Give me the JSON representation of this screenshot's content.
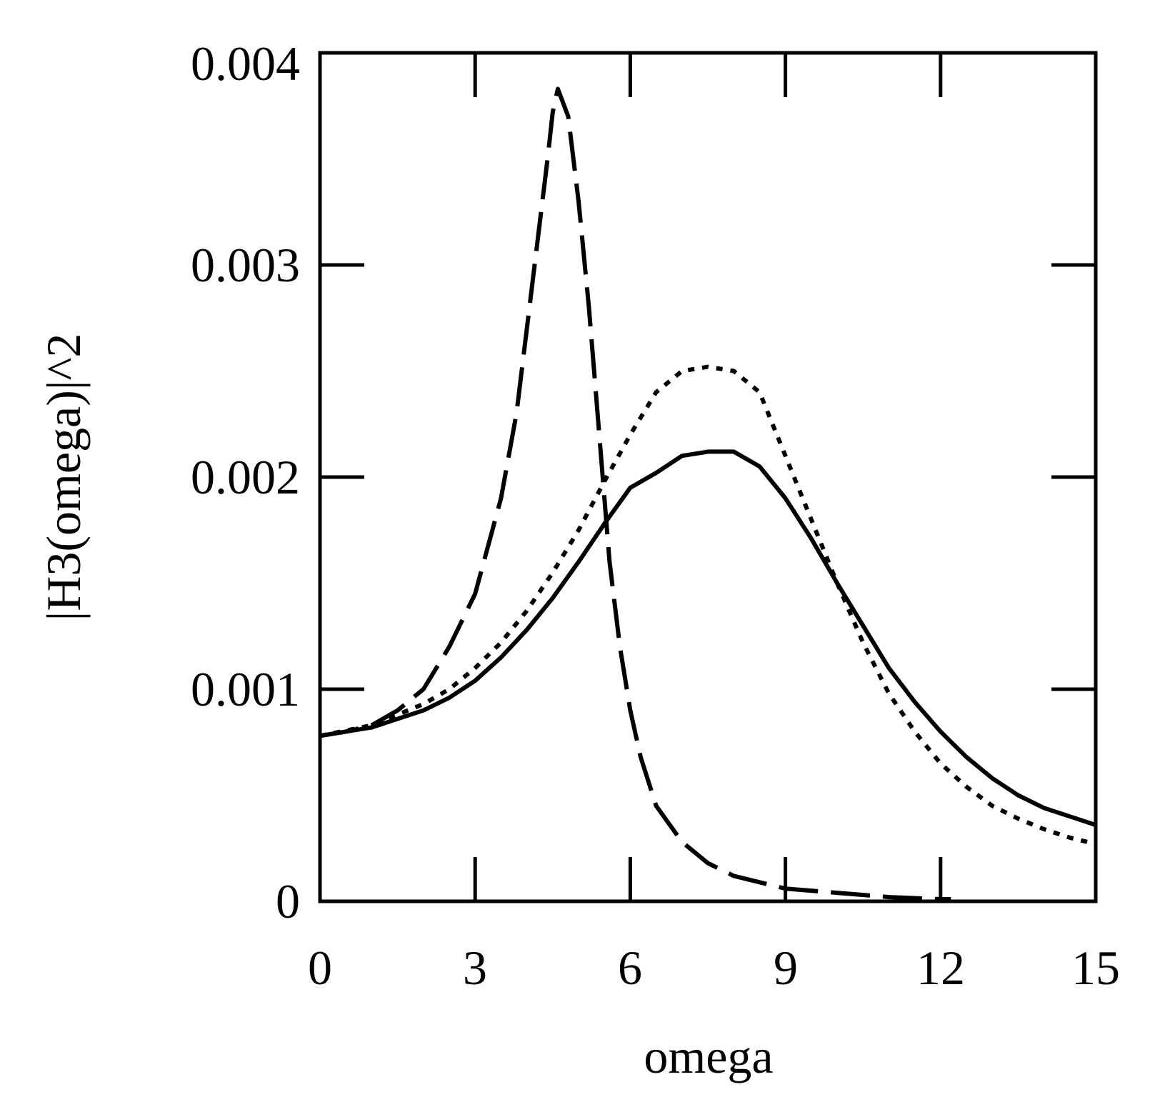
{
  "chart_data": {
    "type": "line",
    "title": "",
    "xlabel": "omega",
    "ylabel": "|H3(omega)|^2",
    "xlim": [
      0,
      15
    ],
    "ylim": [
      0,
      0.004
    ],
    "x_ticks": [
      "0",
      "3",
      "6",
      "9",
      "12",
      "15"
    ],
    "y_ticks": [
      "0",
      "0.001",
      "0.002",
      "0.003",
      "0.004"
    ],
    "x_tick_values": [
      0,
      3,
      6,
      9,
      12,
      15
    ],
    "y_tick_values": [
      0,
      0.001,
      0.002,
      0.003,
      0.004
    ],
    "grid": false,
    "series": [
      {
        "name": "dashed",
        "style": "dashed",
        "color": "#000000",
        "x": [
          0,
          0.5,
          1.0,
          1.5,
          2.0,
          2.5,
          3.0,
          3.5,
          3.8,
          4.0,
          4.2,
          4.4,
          4.5,
          4.6,
          4.8,
          5.0,
          5.2,
          5.4,
          5.6,
          5.8,
          6.0,
          6.2,
          6.5,
          7.0,
          7.5,
          8.0,
          8.5,
          9.0,
          10.0,
          11.0,
          12.0,
          12.2
        ],
        "y": [
          0.00078,
          0.0008,
          0.00083,
          0.0009,
          0.001,
          0.0012,
          0.00145,
          0.0019,
          0.0023,
          0.0027,
          0.0031,
          0.0035,
          0.00372,
          0.00383,
          0.0037,
          0.0033,
          0.0028,
          0.0022,
          0.0016,
          0.0012,
          0.0009,
          0.00068,
          0.00045,
          0.00028,
          0.00018,
          0.00012,
          9e-05,
          6e-05,
          4e-05,
          2e-05,
          1e-05,
          1e-05
        ]
      },
      {
        "name": "dotted",
        "style": "dotted",
        "color": "#000000",
        "x": [
          0,
          1.0,
          2.0,
          2.5,
          3.0,
          3.5,
          4.0,
          4.5,
          5.0,
          5.5,
          6.0,
          6.5,
          7.0,
          7.5,
          8.0,
          8.5,
          9.0,
          9.5,
          10.0,
          10.5,
          11.0,
          11.5,
          12.0,
          12.5,
          13.0,
          13.5,
          14.0,
          14.5,
          15.0
        ],
        "y": [
          0.00078,
          0.00083,
          0.00093,
          0.001,
          0.0011,
          0.00122,
          0.00137,
          0.00155,
          0.00175,
          0.00198,
          0.0022,
          0.0024,
          0.0025,
          0.00252,
          0.0025,
          0.0024,
          0.0021,
          0.0018,
          0.0015,
          0.00122,
          0.00098,
          0.0008,
          0.00065,
          0.00054,
          0.00045,
          0.00039,
          0.00034,
          0.0003,
          0.00027
        ]
      },
      {
        "name": "solid",
        "style": "solid",
        "color": "#000000",
        "x": [
          0,
          1.0,
          2.0,
          2.5,
          3.0,
          3.5,
          4.0,
          4.5,
          5.0,
          5.5,
          6.0,
          6.5,
          7.0,
          7.5,
          8.0,
          8.5,
          9.0,
          9.5,
          10.0,
          10.5,
          11.0,
          11.5,
          12.0,
          12.5,
          13.0,
          13.5,
          14.0,
          14.5,
          15.0
        ],
        "y": [
          0.00078,
          0.00082,
          0.0009,
          0.00096,
          0.00104,
          0.00115,
          0.00128,
          0.00143,
          0.0016,
          0.00178,
          0.00195,
          0.00202,
          0.0021,
          0.00212,
          0.00212,
          0.00205,
          0.0019,
          0.00171,
          0.0015,
          0.0013,
          0.0011,
          0.00094,
          0.0008,
          0.00068,
          0.00058,
          0.0005,
          0.00044,
          0.0004,
          0.00036
        ]
      }
    ]
  }
}
